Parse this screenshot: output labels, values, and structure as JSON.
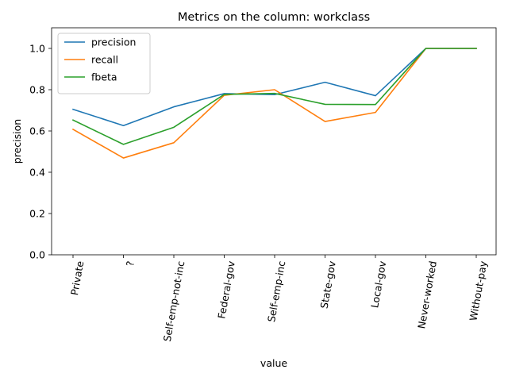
{
  "chart_data": {
    "type": "line",
    "title": "Metrics on the column: workclass",
    "xlabel": "value",
    "ylabel": "precision",
    "categories": [
      "Private",
      "?",
      "Self-emp-not-inc",
      "Federal-gov",
      "Self-emp-inc",
      "State-gov",
      "Local-gov",
      "Never-worked",
      "Without-pay"
    ],
    "ylim": [
      0,
      1.1
    ],
    "yticks": [
      "0.0",
      "0.2",
      "0.4",
      "0.6",
      "0.8",
      "1.0"
    ],
    "grid": false,
    "legend_position": "upper-left",
    "series": [
      {
        "name": "precision",
        "color": "#1f77b4",
        "values": [
          0.705,
          0.626,
          0.717,
          0.781,
          0.776,
          0.836,
          0.771,
          1.0,
          1.0
        ]
      },
      {
        "name": "recall",
        "color": "#ff7f0e",
        "values": [
          0.608,
          0.469,
          0.543,
          0.773,
          0.8,
          0.646,
          0.69,
          1.0,
          1.0
        ]
      },
      {
        "name": "fbeta",
        "color": "#2ca02c",
        "values": [
          0.653,
          0.535,
          0.618,
          0.777,
          0.782,
          0.729,
          0.728,
          1.0,
          1.0
        ]
      }
    ]
  }
}
